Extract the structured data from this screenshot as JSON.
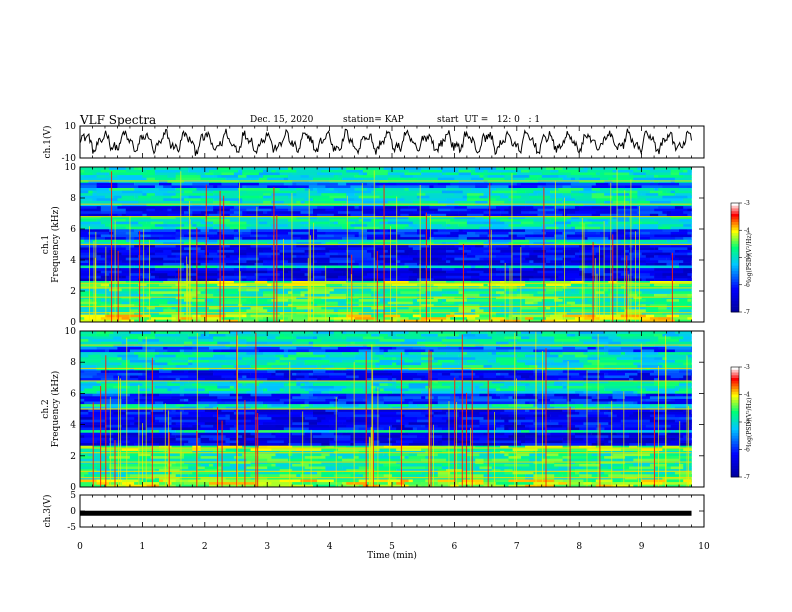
{
  "header": {
    "title": "VLF Spectra",
    "date": "Dec. 15, 2020",
    "station": "station= KAP",
    "start": "start  UT =   12: 0   : 1"
  },
  "chart_data": [
    {
      "type": "line",
      "name_label": "ch.1(V)",
      "ylabel": "ch.1(V)",
      "ylim": [
        -10,
        10
      ],
      "yticks": [
        "10",
        "-10"
      ],
      "xlim": [
        0,
        10
      ],
      "x_end": 9.8,
      "trace": "noisy oscillating voltage, approx. -6 to 6 V"
    },
    {
      "type": "heatmap",
      "ylabel": "Frequency (kHz)",
      "channel_label": "ch.1",
      "ylim": [
        0,
        10
      ],
      "yticks": [
        "0",
        "2",
        "4",
        "6",
        "8",
        "10"
      ],
      "xlim": [
        0,
        10
      ],
      "colorbar": {
        "label": "log(PSD)(V²/Hz)",
        "ticks": [
          "-3",
          "-4",
          "-5",
          "-6",
          "-7"
        ],
        "range": [
          -7,
          -3
        ],
        "colors": [
          "#00008b",
          "#0000ff",
          "#00c8ff",
          "#00ff80",
          "#ffff00",
          "#ff0000",
          "#ffffff"
        ]
      }
    },
    {
      "type": "heatmap",
      "ylabel": "Frequency (kHz)",
      "channel_label": "ch.2",
      "ylim": [
        0,
        10
      ],
      "yticks": [
        "0",
        "2",
        "4",
        "6",
        "8",
        "10"
      ],
      "xlim": [
        0,
        10
      ],
      "colorbar": {
        "label": "log(PSD)(V²/Hz)",
        "ticks": [
          "-3",
          "-4",
          "-5",
          "-6",
          "-7"
        ],
        "range": [
          -7,
          -3
        ],
        "colors": [
          "#00008b",
          "#0000ff",
          "#00c8ff",
          "#00ff80",
          "#ffff00",
          "#ff0000",
          "#ffffff"
        ]
      }
    },
    {
      "type": "line",
      "ylabel": "ch.3(V)",
      "ylim": [
        -5,
        5
      ],
      "yticks": [
        "5",
        "0",
        "-5"
      ],
      "xlim": [
        0,
        10
      ],
      "x_end": 9.8,
      "value": -0.7,
      "xlabel": "Time (min)",
      "xticks": [
        "0",
        "1",
        "2",
        "3",
        "4",
        "5",
        "6",
        "7",
        "8",
        "9",
        "10"
      ]
    }
  ]
}
